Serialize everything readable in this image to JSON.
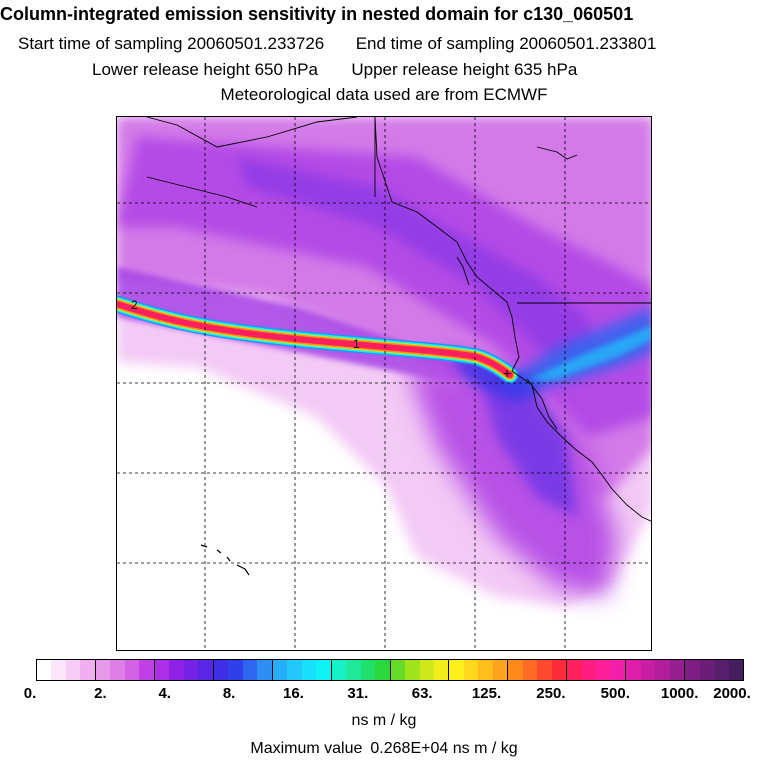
{
  "header": {
    "title": "Column-integrated emission sensitivity in nested domain for c130_060501",
    "start_label": "Start time of sampling",
    "start_value": "20060501.233726",
    "end_label": "End time of sampling",
    "end_value": "20060501.233801",
    "lower_label": "Lower release height",
    "lower_value": "650 hPa",
    "upper_label": "Upper release height",
    "upper_value": "635 hPa",
    "met_source": "Meteorological data used are from ECMWF"
  },
  "map": {
    "plume_markers": [
      "2",
      "1"
    ],
    "release_marker": "+"
  },
  "colorbar": {
    "tick_labels": [
      "0.",
      "2.",
      "4.",
      "8.",
      "16.",
      "31.",
      "63.",
      "125.",
      "250.",
      "500.",
      "1000.",
      "2000."
    ],
    "segment_colors": [
      [
        "#ffffff",
        "#fbe6fb",
        "#f6cdf6",
        "#f0b0f0"
      ],
      [
        "#e79ae9",
        "#dd7fe6",
        "#d462e6",
        "#c13fe6"
      ],
      [
        "#ac2ee6",
        "#8f20e6",
        "#7622e6",
        "#5a26e6"
      ],
      [
        "#3f2ee6",
        "#2f40ea",
        "#2f66ef",
        "#2f8ef4"
      ],
      [
        "#27aef8",
        "#22c8fb",
        "#18e1fd",
        "#10f3f6"
      ],
      [
        "#18f0c8",
        "#1ee89a",
        "#1ee06a",
        "#2ad83c"
      ],
      [
        "#66dc28",
        "#a2e41c",
        "#cfe81c",
        "#f1ee1c"
      ],
      [
        "#fff01c",
        "#ffd81c",
        "#ffbe1c",
        "#ffa41c"
      ],
      [
        "#ff8a1c",
        "#ff6a24",
        "#ff4a30",
        "#ff2a3c"
      ],
      [
        "#ff1e5e",
        "#ff1e80",
        "#ff1e9c",
        "#f21eac"
      ],
      [
        "#de1eaa",
        "#c81ea4",
        "#b01e9c",
        "#961e90"
      ],
      [
        "#7e1e84",
        "#6a1e78",
        "#561e6c",
        "#441e5e"
      ]
    ],
    "units": "ns m / kg",
    "max_label": "Maximum value",
    "max_value": "0.268E+04",
    "max_units": "ns m / kg"
  }
}
